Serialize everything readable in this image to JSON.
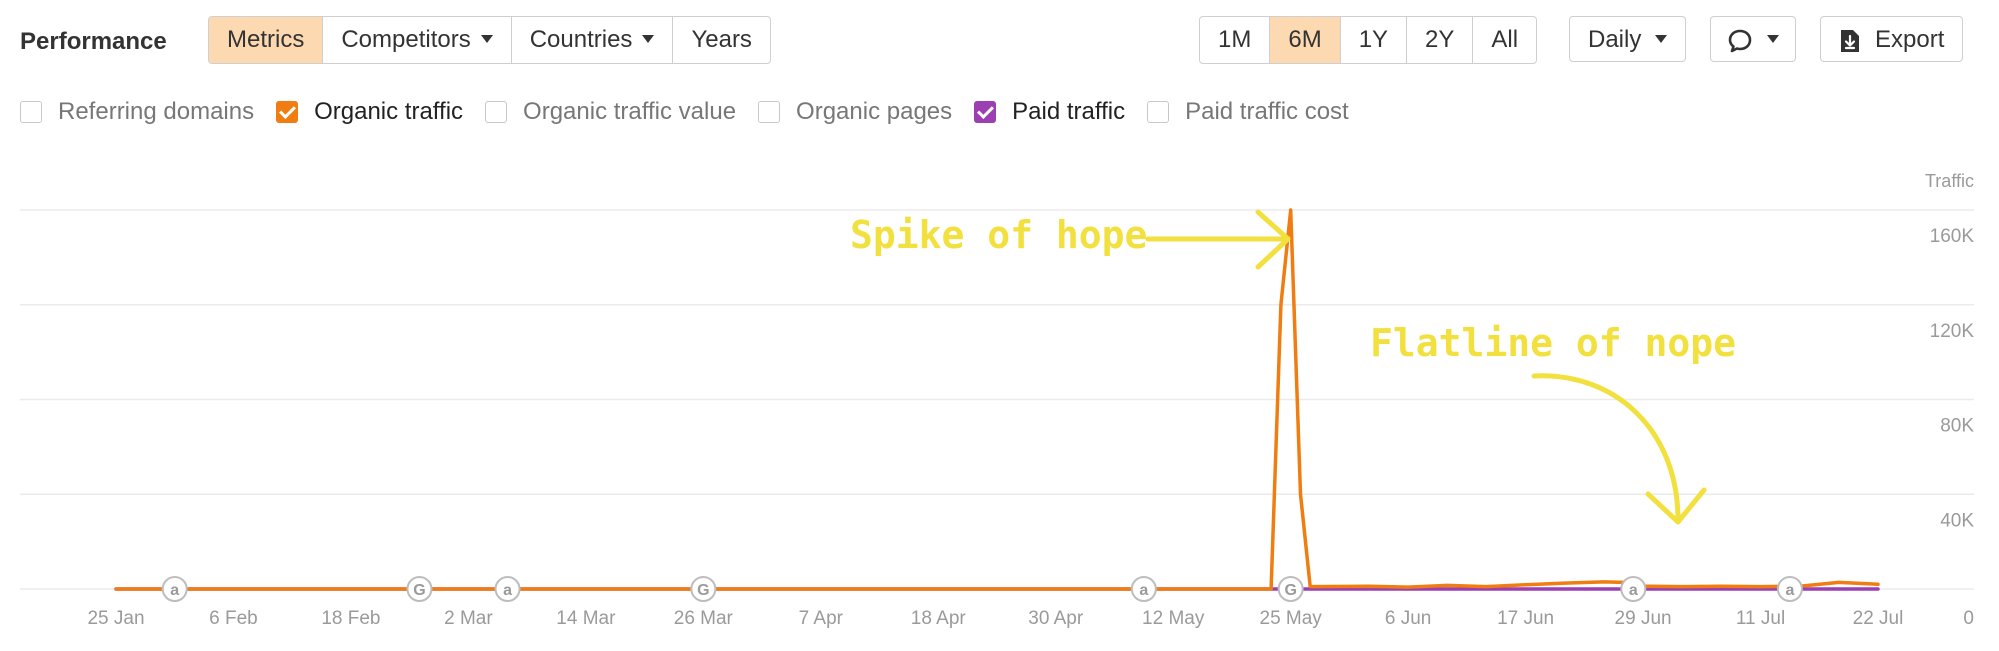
{
  "header": {
    "title": "Performance",
    "view_tabs": [
      {
        "label": "Metrics",
        "active": true,
        "dropdown": false
      },
      {
        "label": "Competitors",
        "active": false,
        "dropdown": true
      },
      {
        "label": "Countries",
        "active": false,
        "dropdown": true
      },
      {
        "label": "Years",
        "active": false,
        "dropdown": false
      }
    ],
    "range_tabs": [
      {
        "label": "1M",
        "active": false
      },
      {
        "label": "6M",
        "active": true
      },
      {
        "label": "1Y",
        "active": false
      },
      {
        "label": "2Y",
        "active": false
      },
      {
        "label": "All",
        "active": false
      }
    ],
    "interval_label": "Daily",
    "annotations_icon": "comment-bubble-icon",
    "export_label": "Export",
    "export_icon": "download-document-icon"
  },
  "metrics": [
    {
      "label": "Referring domains",
      "checked": false,
      "color": ""
    },
    {
      "label": "Organic traffic",
      "checked": true,
      "color": "#f07d12"
    },
    {
      "label": "Organic traffic value",
      "checked": false,
      "color": ""
    },
    {
      "label": "Organic pages",
      "checked": false,
      "color": ""
    },
    {
      "label": "Paid traffic",
      "checked": true,
      "color": "#9c3fb3"
    },
    {
      "label": "Paid traffic cost",
      "checked": false,
      "color": ""
    }
  ],
  "chart_data": {
    "type": "line",
    "title": "",
    "ylabel": "Traffic",
    "ylim": [
      0,
      160000
    ],
    "yticks": [
      {
        "value": 0,
        "label": "0"
      },
      {
        "value": 40000,
        "label": "40K"
      },
      {
        "value": 80000,
        "label": "80K"
      },
      {
        "value": 120000,
        "label": "120K"
      },
      {
        "value": 160000,
        "label": "160K"
      }
    ],
    "x_domain": [
      0,
      180
    ],
    "xticks": [
      {
        "day": 0,
        "label": "25 Jan"
      },
      {
        "day": 12,
        "label": "6 Feb"
      },
      {
        "day": 24,
        "label": "18 Feb"
      },
      {
        "day": 36,
        "label": "2 Mar"
      },
      {
        "day": 48,
        "label": "14 Mar"
      },
      {
        "day": 60,
        "label": "26 Mar"
      },
      {
        "day": 72,
        "label": "7 Apr"
      },
      {
        "day": 84,
        "label": "18 Apr"
      },
      {
        "day": 96,
        "label": "30 Apr"
      },
      {
        "day": 108,
        "label": "12 May"
      },
      {
        "day": 120,
        "label": "25 May"
      },
      {
        "day": 132,
        "label": "6 Jun"
      },
      {
        "day": 144,
        "label": "17 Jun"
      },
      {
        "day": 156,
        "label": "29 Jun"
      },
      {
        "day": 168,
        "label": "11 Jul"
      },
      {
        "day": 180,
        "label": "22 Jul"
      }
    ],
    "series": [
      {
        "name": "Organic traffic",
        "color": "#f07d12",
        "points": [
          [
            0,
            0
          ],
          [
            118,
            0
          ],
          [
            119,
            120000
          ],
          [
            120,
            160000
          ],
          [
            121,
            40000
          ],
          [
            122,
            1000
          ],
          [
            128,
            1200
          ],
          [
            132,
            800
          ],
          [
            136,
            1500
          ],
          [
            140,
            1000
          ],
          [
            144,
            1800
          ],
          [
            148,
            2500
          ],
          [
            152,
            3000
          ],
          [
            154,
            2800
          ],
          [
            156,
            1200
          ],
          [
            160,
            1000
          ],
          [
            164,
            1200
          ],
          [
            168,
            1000
          ],
          [
            172,
            1200
          ],
          [
            176,
            2800
          ],
          [
            180,
            2000
          ]
        ]
      },
      {
        "name": "Paid traffic",
        "color": "#9c3fb3",
        "points": [
          [
            0,
            0
          ],
          [
            180,
            0
          ]
        ]
      }
    ],
    "event_markers": [
      {
        "day": 6,
        "kind": "a"
      },
      {
        "day": 31,
        "kind": "G"
      },
      {
        "day": 40,
        "kind": "a"
      },
      {
        "day": 60,
        "kind": "G"
      },
      {
        "day": 105,
        "kind": "a"
      },
      {
        "day": 120,
        "kind": "G"
      },
      {
        "day": 155,
        "kind": "a"
      },
      {
        "day": 171,
        "kind": "a"
      }
    ],
    "annotations": [
      {
        "text": "Spike of hope",
        "color": "#f2e03f"
      },
      {
        "text": "Flatline of nope",
        "color": "#f2e03f"
      }
    ]
  }
}
